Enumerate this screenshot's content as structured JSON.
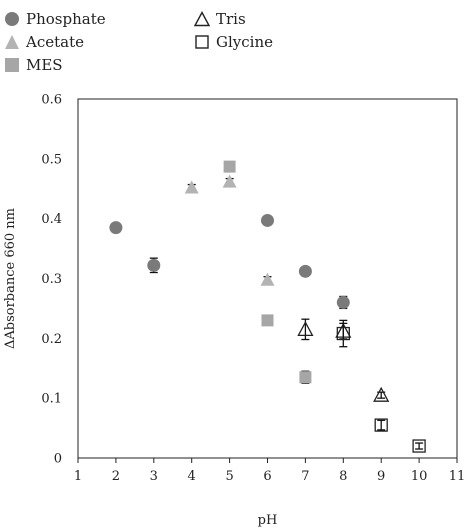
{
  "chart_data": {
    "type": "scatter",
    "title": "",
    "xlabel": "pH",
    "ylabel": "ΔAbsorbance 660 nm",
    "xlim": [
      1,
      11
    ],
    "ylim": [
      0,
      0.6
    ],
    "xticks": [
      "1",
      "2",
      "3",
      "4",
      "5",
      "6",
      "7",
      "8",
      "9",
      "10",
      "11"
    ],
    "yticks": [
      "0",
      "0.1",
      "0.2",
      "0.3",
      "0.4",
      "0.5",
      "0.6"
    ],
    "grid": false,
    "legend_position": "top-left",
    "series": [
      {
        "name": "Phosphate",
        "marker": "circle",
        "color": "#7a7a7a",
        "points": [
          {
            "x": 2,
            "y": 0.385,
            "err": 0.005
          },
          {
            "x": 3,
            "y": 0.322,
            "err": 0.012
          },
          {
            "x": 6,
            "y": 0.397,
            "err": 0.005
          },
          {
            "x": 7,
            "y": 0.312,
            "err": 0.005
          },
          {
            "x": 8,
            "y": 0.26,
            "err": 0.01
          }
        ]
      },
      {
        "name": "Acetate",
        "marker": "triangle",
        "color": "#b3b3b3",
        "points": [
          {
            "x": 4,
            "y": 0.452,
            "err": 0.005
          },
          {
            "x": 5,
            "y": 0.462,
            "err": 0.005
          },
          {
            "x": 6,
            "y": 0.298,
            "err": 0.005
          }
        ]
      },
      {
        "name": "MES",
        "marker": "square",
        "color": "#a6a6a6",
        "points": [
          {
            "x": 5,
            "y": 0.487,
            "err": 0.005
          },
          {
            "x": 6,
            "y": 0.23,
            "err": 0.005
          },
          {
            "x": 7,
            "y": 0.135,
            "err": 0.01
          }
        ]
      },
      {
        "name": "Tris",
        "marker": "triangle-open",
        "color": "#222222",
        "points": [
          {
            "x": 7,
            "y": 0.215,
            "err": 0.017
          },
          {
            "x": 8,
            "y": 0.212,
            "err": 0.013
          },
          {
            "x": 9,
            "y": 0.105,
            "err": 0.005
          }
        ]
      },
      {
        "name": "Glycine",
        "marker": "square-open",
        "color": "#222222",
        "points": [
          {
            "x": 8,
            "y": 0.208,
            "err": 0.022
          },
          {
            "x": 9,
            "y": 0.055,
            "err": 0.008
          },
          {
            "x": 10,
            "y": 0.02,
            "err": 0.005
          }
        ]
      }
    ]
  }
}
